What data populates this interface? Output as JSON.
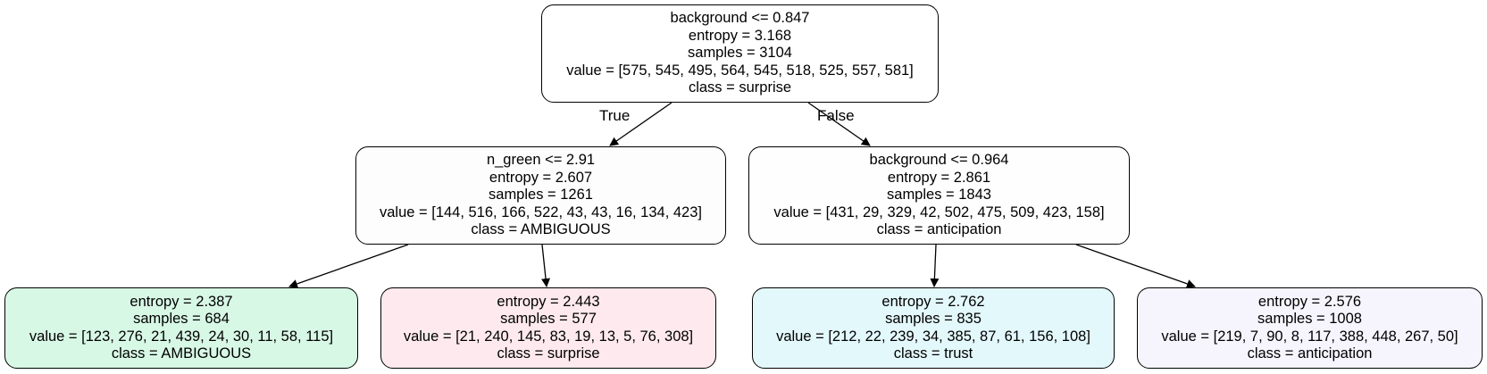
{
  "nodes": {
    "root": {
      "split": "background <= 0.847",
      "entropy": "entropy = 3.168",
      "samples": "samples = 3104",
      "value": "value = [575, 545, 495, 564, 545, 518, 525, 557, 581]",
      "class": "class = surprise",
      "color": "#ffffff"
    },
    "left": {
      "split": "n_green <= 2.91",
      "entropy": "entropy = 2.607",
      "samples": "samples = 1261",
      "value": "value = [144, 516, 166, 522, 43, 43, 16, 134, 423]",
      "class": "class = AMBIGUOUS",
      "color": "#fdfdfd"
    },
    "right": {
      "split": "background <= 0.964",
      "entropy": "entropy = 2.861",
      "samples": "samples = 1843",
      "value": "value = [431, 29, 329, 42, 502, 475, 509, 423, 158]",
      "class": "class = anticipation",
      "color": "#fefefe"
    },
    "leaf1": {
      "entropy": "entropy = 2.387",
      "samples": "samples = 684",
      "value": "value = [123, 276, 21, 439, 24, 30, 11, 58, 115]",
      "class": "class = AMBIGUOUS",
      "color": "#d8f8e6"
    },
    "leaf2": {
      "entropy": "entropy = 2.443",
      "samples": "samples = 577",
      "value": "value = [21, 240, 145, 83, 19, 13, 5, 76, 308]",
      "class": "class = surprise",
      "color": "#fde9ee"
    },
    "leaf3": {
      "entropy": "entropy = 2.762",
      "samples": "samples = 835",
      "value": "value = [212, 22, 239, 34, 385, 87, 61, 156, 108]",
      "class": "class = trust",
      "color": "#e3f8fb"
    },
    "leaf4": {
      "entropy": "entropy = 2.576",
      "samples": "samples = 1008",
      "value": "value = [219, 7, 90, 8, 117, 388, 448, 267, 50]",
      "class": "class = anticipation",
      "color": "#f6f4fd"
    }
  },
  "edge_labels": {
    "true": "True",
    "false": "False"
  },
  "colors": {
    "edge": "#000000",
    "border": "#000000"
  }
}
